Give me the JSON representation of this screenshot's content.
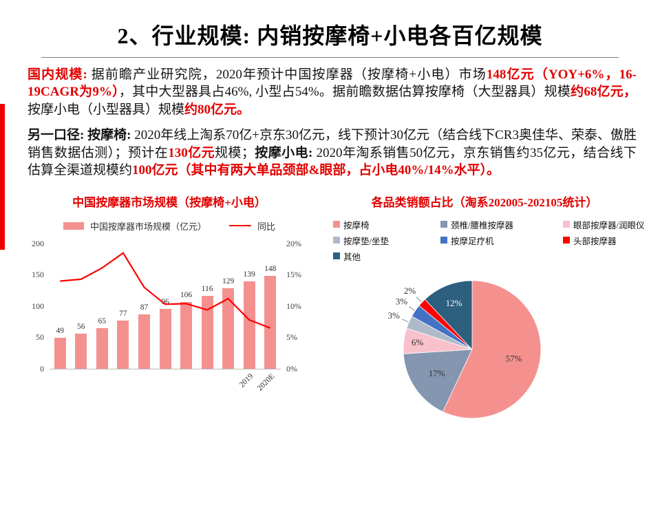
{
  "slide": {
    "title": "2、行业规模: 内销按摩椅+小电各百亿规模"
  },
  "colors": {
    "emphasis_red": "#e10000",
    "bar_pink": "#f4918f",
    "line_red": "#fe0000"
  },
  "paragraphs": {
    "p1": [
      {
        "text": "国内规模: ",
        "style": "red-bold"
      },
      {
        "text": "据前瞻产业研究院，2020年预计中国按摩器（按摩椅+小电）市场",
        "style": "black"
      },
      {
        "text": "148亿元（YOY+6%，16-19CAGR为9%）",
        "style": "red-bold"
      },
      {
        "text": "，其中大型器具占46%, 小型占54%。据前瞻数据估算按摩椅（大型器具）规模",
        "style": "black"
      },
      {
        "text": "约68亿元，",
        "style": "red-bold"
      },
      {
        "text": "按摩小电（小型器具）规模",
        "style": "black"
      },
      {
        "text": "约80亿元。",
        "style": "red-bold"
      }
    ],
    "p2": [
      {
        "text": "另一口径: 按摩椅: ",
        "style": "black-bold"
      },
      {
        "text": "2020年线上淘系70亿+京东30亿元，线下预计30亿元（结合线下CR3奥佳华、荣泰、傲胜销售数据估测）；预计在",
        "style": "black"
      },
      {
        "text": "130亿元",
        "style": "red-bold"
      },
      {
        "text": "规模；",
        "style": "black"
      },
      {
        "text": "按摩小电: ",
        "style": "black-bold"
      },
      {
        "text": "2020年淘系销售50亿元，京东销售约35亿元，结合线下估算全渠道规模约",
        "style": "black"
      },
      {
        "text": "100亿元（其中有两大单品颈部&眼部，占小电40%/14%水平）。",
        "style": "red-bold"
      }
    ]
  },
  "chart_data": [
    {
      "type": "bar",
      "title": "中国按摩器市场规模（按摩椅+小电）",
      "categories": [
        "",
        "",
        "",
        "",
        "",
        "",
        "",
        "",
        "",
        "2019",
        "2020E"
      ],
      "series": [
        {
          "name": "中国按摩器市场规模（亿元）",
          "type": "bar",
          "color": "#f4918f",
          "values": [
            49,
            56,
            65,
            77,
            87,
            96,
            106,
            116,
            129,
            139,
            148
          ]
        },
        {
          "name": "同比",
          "type": "line",
          "color": "#fe0000",
          "values": [
            14.0,
            14.3,
            16.1,
            18.5,
            13.0,
            10.3,
            10.4,
            9.4,
            11.2,
            7.8,
            6.5
          ]
        }
      ],
      "left_axis": {
        "min": 0,
        "max": 200,
        "ticks": [
          0,
          50,
          100,
          150,
          200
        ]
      },
      "right_axis": {
        "min": 0,
        "max": 20,
        "ticks": [
          "0%",
          "5%",
          "10%",
          "15%",
          "20%"
        ]
      },
      "legend_position": "top",
      "grid": false
    },
    {
      "type": "pie",
      "title": "各品类销额占比（淘系202005-202105统计）",
      "legend_position": "top",
      "slices": [
        {
          "label": "按摩椅",
          "value": 57,
          "color": "#f4918f"
        },
        {
          "label": "颈椎/腰椎按摩器",
          "value": 17,
          "color": "#8496b0"
        },
        {
          "label": "眼部按摩器/润眼仪",
          "value": 6,
          "color": "#f8c1cc"
        },
        {
          "label": "按摩垫/坐垫",
          "value": 3,
          "color": "#aebaca"
        },
        {
          "label": "按摩足疗机",
          "value": 3,
          "color": "#4472c4"
        },
        {
          "label": "头部按摩器",
          "value": 2,
          "color": "#fe0000"
        },
        {
          "label": "其他",
          "value": 12,
          "color": "#2d5f7e"
        }
      ]
    }
  ]
}
